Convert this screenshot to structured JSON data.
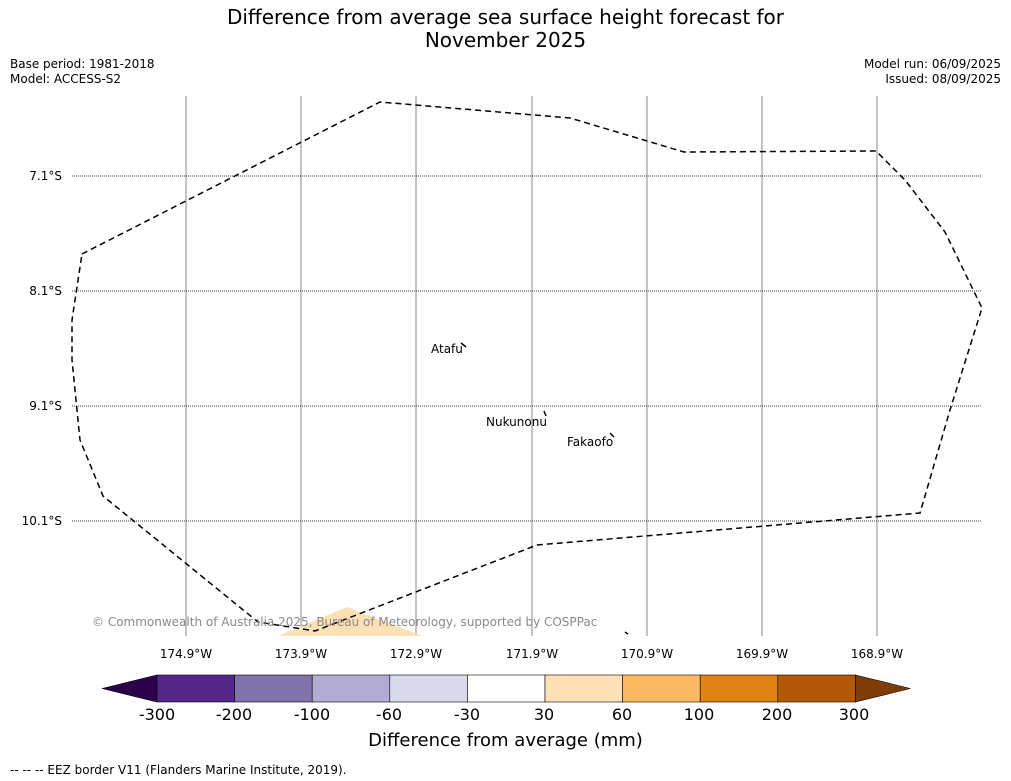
{
  "title_line1": "Difference from average sea surface height forecast for",
  "title_line2": "November 2025",
  "meta_left": {
    "base_period": "Base period: 1981-2018",
    "model": "Model: ACCESS-S2"
  },
  "meta_right": {
    "model_run": "Model run: 06/09/2025",
    "issued": "Issued: 08/09/2025"
  },
  "map": {
    "lat_labels": [
      "7.1°S",
      "8.1°S",
      "9.1°S",
      "10.1°S"
    ],
    "lon_labels": [
      "174.9°W",
      "173.9°W",
      "172.9°W",
      "171.9°W",
      "170.9°W",
      "169.9°W",
      "168.9°W"
    ],
    "islands": [
      "Atafu",
      "Nukunonu",
      "Fakaofo"
    ],
    "copyright": "© Commonwealth of Australia 2025, Bureau of Meteorology, supported by COSPPac"
  },
  "colorbar": {
    "title": "Difference from average (mm)",
    "labels": [
      "-300",
      "-200",
      "-100",
      "-60",
      "-30",
      "30",
      "60",
      "100",
      "200",
      "300"
    ],
    "colors": [
      "#2d004b",
      "#542788",
      "#8073ac",
      "#b2abd2",
      "#d8daeb",
      "#ffffff",
      "#fee0b6",
      "#fdb863",
      "#e08214",
      "#b35806",
      "#7f3b08"
    ]
  },
  "footnote": "-- -- -- EEZ border V11 (Flanders Marine Institute, 2019)."
}
